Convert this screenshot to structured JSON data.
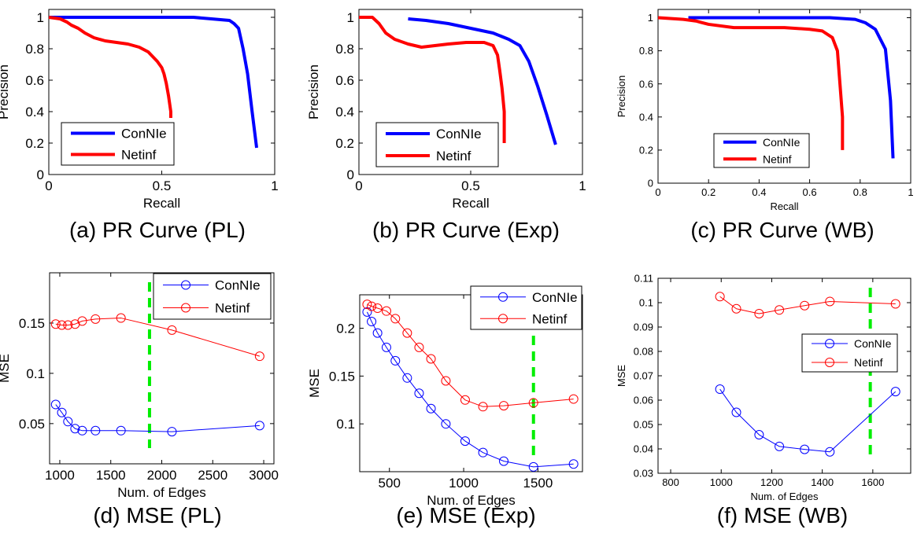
{
  "chart_data": [
    {
      "id": "a",
      "type": "line",
      "caption": "(a)  PR Curve (PL)",
      "xlabel": "Recall",
      "ylabel": "Precision",
      "xlim": [
        0,
        1
      ],
      "ylim": [
        0,
        1.05
      ],
      "xticks": [
        0,
        0.5,
        1
      ],
      "xtick_labels": [
        "0",
        "0.5",
        "1"
      ],
      "yticks": [
        0,
        0.2,
        0.4,
        0.6,
        0.8,
        1
      ],
      "ytick_labels": [
        "0",
        "0.2",
        "0.4",
        "0.6",
        "0.8",
        "1"
      ],
      "legend": "bottom-left",
      "series": [
        {
          "name": "ConNIe",
          "color": "#0000ff",
          "x": [
            0,
            0.3,
            0.64,
            0.72,
            0.8,
            0.82,
            0.84,
            0.86,
            0.88,
            0.9,
            0.92
          ],
          "y": [
            1.0,
            1.0,
            1.0,
            0.99,
            0.98,
            0.96,
            0.93,
            0.8,
            0.64,
            0.4,
            0.17
          ]
        },
        {
          "name": "Netinf",
          "color": "#ff0000",
          "x": [
            0,
            0.05,
            0.08,
            0.1,
            0.13,
            0.16,
            0.2,
            0.25,
            0.3,
            0.35,
            0.4,
            0.44,
            0.46,
            0.48,
            0.5,
            0.51,
            0.52,
            0.53,
            0.54,
            0.54
          ],
          "y": [
            1.0,
            0.99,
            0.97,
            0.95,
            0.93,
            0.9,
            0.87,
            0.85,
            0.84,
            0.83,
            0.81,
            0.78,
            0.75,
            0.72,
            0.68,
            0.64,
            0.58,
            0.5,
            0.4,
            0.36
          ]
        }
      ]
    },
    {
      "id": "b",
      "type": "line",
      "caption": "(b)  PR Curve (Exp)",
      "xlabel": "Recall",
      "ylabel": "Precision",
      "xlim": [
        0,
        1
      ],
      "ylim": [
        0,
        1.05
      ],
      "xticks": [
        0,
        0.5,
        1
      ],
      "xtick_labels": [
        "0",
        "0.5",
        "1"
      ],
      "yticks": [
        0,
        0.2,
        0.4,
        0.6,
        0.8,
        1
      ],
      "ytick_labels": [
        "0",
        "0.2",
        "0.4",
        "0.6",
        "0.8",
        "1"
      ],
      "legend": "bottom-left",
      "series": [
        {
          "name": "ConNIe",
          "color": "#0000ff",
          "x": [
            0.22,
            0.3,
            0.4,
            0.5,
            0.6,
            0.67,
            0.72,
            0.76,
            0.8,
            0.84,
            0.88
          ],
          "y": [
            0.99,
            0.98,
            0.96,
            0.93,
            0.9,
            0.86,
            0.82,
            0.72,
            0.56,
            0.38,
            0.19
          ]
        },
        {
          "name": "Netinf",
          "color": "#ff0000",
          "x": [
            0,
            0.06,
            0.09,
            0.12,
            0.16,
            0.22,
            0.28,
            0.34,
            0.4,
            0.48,
            0.56,
            0.6,
            0.62,
            0.63,
            0.64,
            0.65,
            0.65
          ],
          "y": [
            1.0,
            1.0,
            0.96,
            0.9,
            0.86,
            0.83,
            0.81,
            0.82,
            0.83,
            0.84,
            0.84,
            0.82,
            0.76,
            0.66,
            0.55,
            0.4,
            0.2
          ]
        }
      ]
    },
    {
      "id": "c",
      "type": "line",
      "caption": "(c)  PR Curve (WB)",
      "xlabel": "Recall",
      "ylabel": "Precision",
      "xlim": [
        0,
        1
      ],
      "ylim": [
        0,
        1.05
      ],
      "xticks": [
        0,
        0.2,
        0.4,
        0.6,
        0.8,
        1
      ],
      "xtick_labels": [
        "0",
        "0.2",
        "0.4",
        "0.6",
        "0.8",
        "1"
      ],
      "yticks": [
        0,
        0.2,
        0.4,
        0.6,
        0.8,
        1
      ],
      "ytick_labels": [
        "0",
        "0.2",
        "0.4",
        "0.6",
        "0.8",
        "1"
      ],
      "legend": "bottom-left",
      "series": [
        {
          "name": "ConNIe",
          "color": "#0000ff",
          "x": [
            0.12,
            0.5,
            0.68,
            0.78,
            0.82,
            0.86,
            0.9,
            0.92,
            0.93
          ],
          "y": [
            1.0,
            1.0,
            1.0,
            0.99,
            0.97,
            0.93,
            0.81,
            0.5,
            0.15
          ]
        },
        {
          "name": "Netinf",
          "color": "#ff0000",
          "x": [
            0,
            0.1,
            0.15,
            0.2,
            0.3,
            0.4,
            0.5,
            0.6,
            0.65,
            0.69,
            0.71,
            0.72,
            0.73,
            0.73
          ],
          "y": [
            1.0,
            0.99,
            0.98,
            0.96,
            0.94,
            0.94,
            0.94,
            0.93,
            0.92,
            0.88,
            0.8,
            0.6,
            0.4,
            0.2
          ]
        }
      ]
    },
    {
      "id": "d",
      "type": "line",
      "caption": "(d)  MSE (PL)",
      "xlabel": "Num. of Edges",
      "ylabel": "MSE",
      "xlim": [
        900,
        3100
      ],
      "ylim": [
        0.01,
        0.2
      ],
      "xticks": [
        1000,
        1500,
        2000,
        2500,
        3000
      ],
      "xtick_labels": [
        "1000",
        "1500",
        "2000",
        "2500",
        "3000"
      ],
      "yticks": [
        0.05,
        0.1,
        0.15
      ],
      "ytick_labels": [
        "0.05",
        "0.1",
        "0.15"
      ],
      "legend": "top-right",
      "vline": {
        "x": 1880,
        "color": "#00ee00"
      },
      "series": [
        {
          "name": "ConNIe",
          "color": "#0000ff",
          "x": [
            960,
            1020,
            1080,
            1150,
            1220,
            1350,
            1600,
            2100,
            2960
          ],
          "y": [
            0.069,
            0.061,
            0.052,
            0.045,
            0.043,
            0.043,
            0.043,
            0.042,
            0.048
          ]
        },
        {
          "name": "Netinf",
          "color": "#ff0000",
          "x": [
            960,
            1020,
            1080,
            1150,
            1220,
            1350,
            1600,
            2100,
            2960
          ],
          "y": [
            0.149,
            0.148,
            0.148,
            0.149,
            0.152,
            0.154,
            0.155,
            0.143,
            0.117
          ]
        }
      ]
    },
    {
      "id": "e",
      "type": "line",
      "caption": "(e)  MSE (Exp)",
      "xlabel": "Num. of Edges",
      "ylabel": "MSE",
      "xlim": [
        300,
        1800
      ],
      "ylim": [
        0.05,
        0.235
      ],
      "xticks": [
        500,
        1000,
        1500
      ],
      "xtick_labels": [
        "500",
        "1000",
        "1500"
      ],
      "yticks": [
        0.1,
        0.15,
        0.2
      ],
      "ytick_labels": [
        "0.1",
        "0.15",
        "0.2"
      ],
      "legend": "top-right",
      "vline": {
        "x": 1470,
        "color": "#00ee00"
      },
      "series": [
        {
          "name": "ConNIe",
          "color": "#0000ff",
          "x": [
            350,
            380,
            420,
            480,
            540,
            620,
            700,
            780,
            880,
            1010,
            1130,
            1270,
            1470,
            1740
          ],
          "y": [
            0.217,
            0.207,
            0.195,
            0.18,
            0.166,
            0.148,
            0.132,
            0.116,
            0.1,
            0.082,
            0.07,
            0.061,
            0.055,
            0.058
          ]
        },
        {
          "name": "Netinf",
          "color": "#ff0000",
          "x": [
            350,
            380,
            420,
            480,
            540,
            620,
            700,
            780,
            880,
            1010,
            1130,
            1270,
            1470,
            1740
          ],
          "y": [
            0.225,
            0.223,
            0.221,
            0.218,
            0.21,
            0.195,
            0.18,
            0.168,
            0.145,
            0.125,
            0.118,
            0.119,
            0.122,
            0.126
          ]
        }
      ]
    },
    {
      "id": "f",
      "type": "line",
      "caption": "(f)  MSE (WB)",
      "xlabel": "Num. of Edges",
      "ylabel": "MSE",
      "xlim": [
        750,
        1750
      ],
      "ylim": [
        0.03,
        0.11
      ],
      "xticks": [
        800,
        1000,
        1200,
        1400,
        1600
      ],
      "xtick_labels": [
        "800",
        "1000",
        "1200",
        "1400",
        "1600"
      ],
      "yticks": [
        0.03,
        0.04,
        0.05,
        0.06,
        0.07,
        0.08,
        0.09,
        0.1,
        0.11
      ],
      "ytick_labels": [
        "0.03",
        "0.04",
        "0.05",
        "0.06",
        "0.07",
        "0.08",
        "0.09",
        "0.1",
        "0.11"
      ],
      "legend": "middle-right",
      "vline": {
        "x": 1590,
        "color": "#00ee00"
      },
      "series": [
        {
          "name": "ConNIe",
          "color": "#0000ff",
          "x": [
            995,
            1060,
            1150,
            1230,
            1330,
            1430,
            1690
          ],
          "y": [
            0.0645,
            0.055,
            0.0458,
            0.041,
            0.0398,
            0.0388,
            0.0635
          ]
        },
        {
          "name": "Netinf",
          "color": "#ff0000",
          "x": [
            995,
            1060,
            1150,
            1230,
            1330,
            1430,
            1690
          ],
          "y": [
            0.1025,
            0.0975,
            0.0955,
            0.097,
            0.0988,
            0.1005,
            0.0995
          ]
        }
      ]
    }
  ]
}
